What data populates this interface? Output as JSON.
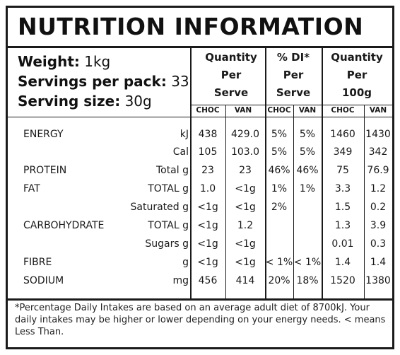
{
  "title": "NUTRITION INFORMATION",
  "weight": {
    "label": "Weight:",
    "value": "1kg"
  },
  "servings": {
    "label": "Servings per pack:",
    "value": "33"
  },
  "serving_size": {
    "label": "Serving size:",
    "value": "30g"
  },
  "columns": {
    "qty_serve": [
      "Quantity",
      "Per",
      "Serve"
    ],
    "di_serve": [
      "% DI*",
      "Per",
      "Serve"
    ],
    "qty_100g": [
      "Quantity",
      "Per",
      "100g"
    ],
    "sub": [
      "CHOC",
      "VAN",
      "CHOC",
      "VAN",
      "CHOC",
      "VAN"
    ]
  },
  "rows": [
    {
      "name": "ENERGY",
      "unit": "kJ",
      "values": [
        "438",
        "429.0",
        "5%",
        "5%",
        "1460",
        "1430"
      ]
    },
    {
      "name": "",
      "unit": "Cal",
      "values": [
        "105",
        "103.0",
        "5%",
        "5%",
        "349",
        "342"
      ]
    },
    {
      "name": "PROTEIN",
      "unit": "Total g",
      "values": [
        "23",
        "23",
        "46%",
        "46%",
        "75",
        "76.9"
      ]
    },
    {
      "name": "FAT",
      "unit": "TOTAL g",
      "values": [
        "1.0",
        "<1g",
        "1%",
        "1%",
        "3.3",
        "1.2"
      ]
    },
    {
      "name": "",
      "unit": "Saturated g",
      "values": [
        "<1g",
        "<1g",
        "2%",
        "",
        "1.5",
        "0.2"
      ]
    },
    {
      "name": "CARBOHYDRATE",
      "unit": "TOTAL g",
      "values": [
        "<1g",
        "1.2",
        "",
        "",
        "1.3",
        "3.9"
      ]
    },
    {
      "name": "",
      "unit": "Sugars g",
      "values": [
        "<1g",
        "<1g",
        "",
        "",
        "0.01",
        "0.3"
      ]
    },
    {
      "name": "FIBRE",
      "unit": "g",
      "values": [
        "<1g",
        "<1g",
        "< 1%",
        "< 1%",
        "1.4",
        "1.4"
      ]
    },
    {
      "name": "SODIUM",
      "unit": "mg",
      "values": [
        "456",
        "414",
        "20%",
        "18%",
        "1520",
        "1380"
      ]
    }
  ],
  "footnote": "*Percentage Daily Intakes are based on an average adult diet of 8700kJ. Your daily intakes may be higher or lower depending on your energy needs. < means Less Than."
}
